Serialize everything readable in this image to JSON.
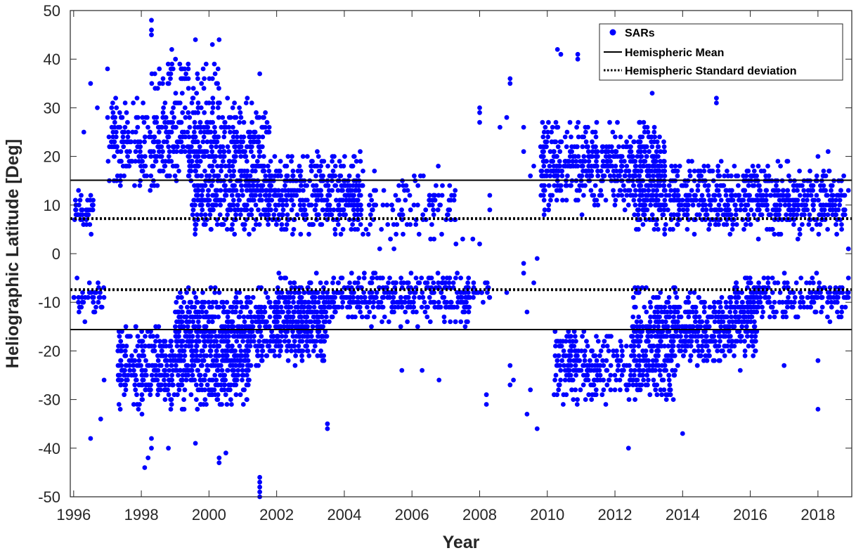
{
  "chart_data": {
    "type": "scatter",
    "title": "",
    "xlabel": "Year",
    "ylabel": "Heliographic Latitude [Deg]",
    "xlim": [
      1995.9,
      2019.0
    ],
    "ylim": [
      -50,
      50
    ],
    "xticks": [
      1996,
      1998,
      2000,
      2002,
      2004,
      2006,
      2008,
      2010,
      2012,
      2014,
      2016,
      2018
    ],
    "yticks": [
      -50,
      -40,
      -30,
      -20,
      -10,
      0,
      10,
      20,
      30,
      40,
      50
    ],
    "grid": false,
    "legend_position": "top-right",
    "legend": [
      {
        "label": "SARs",
        "style": "blue-dot"
      },
      {
        "label": "Hemispheric Mean",
        "style": "solid-line"
      },
      {
        "label": "Hemispheric Standard deviation",
        "style": "dotted-line"
      }
    ],
    "colors": {
      "sars": "#0000ff",
      "lines": "#000000",
      "axes": "#262626"
    },
    "series": [
      {
        "name": "SARs",
        "type": "scatter",
        "clusters": [
          {
            "x_range": [
              1996.0,
              1996.6
            ],
            "y_range": [
              4,
              13
            ],
            "count": 40
          },
          {
            "x_range": [
              1996.0,
              1996.9
            ],
            "y_range": [
              -14,
              -4
            ],
            "count": 40
          },
          {
            "x_range": [
              1997.0,
              2001.8
            ],
            "y_range": [
              12,
              33
            ],
            "count": 520
          },
          {
            "x_range": [
              1998.3,
              2000.3
            ],
            "y_range": [
              30,
              42
            ],
            "count": 60
          },
          {
            "x_range": [
              1999.5,
              2004.6
            ],
            "y_range": [
              3,
              22
            ],
            "count": 620
          },
          {
            "x_range": [
              2003.8,
              2007.3
            ],
            "y_range": [
              0,
              18
            ],
            "count": 130
          },
          {
            "x_range": [
              1997.3,
              2001.2
            ],
            "y_range": [
              -33,
              -14
            ],
            "count": 520
          },
          {
            "x_range": [
              1999.0,
              2003.5
            ],
            "y_range": [
              -24,
              -6
            ],
            "count": 650
          },
          {
            "x_range": [
              2002.0,
              2007.7
            ],
            "y_range": [
              -15,
              -3
            ],
            "count": 420
          },
          {
            "x_range": [
              2007.5,
              2008.3
            ],
            "y_range": [
              -12,
              -5
            ],
            "count": 25
          },
          {
            "x_range": [
              2009.8,
              2013.5
            ],
            "y_range": [
              8,
              28
            ],
            "count": 480
          },
          {
            "x_range": [
              2012.5,
              2018.8
            ],
            "y_range": [
              3,
              20
            ],
            "count": 680
          },
          {
            "x_range": [
              2010.2,
              2013.8
            ],
            "y_range": [
              -32,
              -14
            ],
            "count": 360
          },
          {
            "x_range": [
              2012.5,
              2016.2
            ],
            "y_range": [
              -24,
              -6
            ],
            "count": 480
          },
          {
            "x_range": [
              2015.5,
              2018.9
            ],
            "y_range": [
              -14,
              -4
            ],
            "count": 200
          }
        ],
        "points": [
          [
            1998.3,
            48
          ],
          [
            1998.3,
            46
          ],
          [
            1998.3,
            45
          ],
          [
            1999.6,
            44
          ],
          [
            2000.3,
            44
          ],
          [
            2000.1,
            43
          ],
          [
            1998.9,
            42
          ],
          [
            2010.3,
            42
          ],
          [
            2010.9,
            41
          ],
          [
            2010.4,
            41
          ],
          [
            2010.9,
            40
          ],
          [
            2001.5,
            37
          ],
          [
            1997.0,
            38
          ],
          [
            2008.9,
            36
          ],
          [
            2008.9,
            35
          ],
          [
            2013.1,
            33
          ],
          [
            2015.0,
            32
          ],
          [
            2015.0,
            31
          ],
          [
            2008.0,
            30
          ],
          [
            2008.0,
            29
          ],
          [
            2008.8,
            28
          ],
          [
            2008.0,
            27
          ],
          [
            2008.6,
            26
          ],
          [
            1996.5,
            35
          ],
          [
            1996.7,
            30
          ],
          [
            1996.3,
            25
          ],
          [
            2007.3,
            2
          ],
          [
            2007.5,
            3
          ],
          [
            2007.8,
            3
          ],
          [
            2008.0,
            2
          ],
          [
            2006.9,
            14
          ],
          [
            2008.3,
            12
          ],
          [
            2008.3,
            9
          ],
          [
            2009.3,
            26
          ],
          [
            2009.3,
            21
          ],
          [
            2009.5,
            16
          ],
          [
            2009.6,
            18
          ],
          [
            2018.0,
            20
          ],
          [
            2018.3,
            21
          ],
          [
            2018.9,
            13
          ],
          [
            2018.9,
            1
          ],
          [
            1998.3,
            -40
          ],
          [
            1998.2,
            -42
          ],
          [
            1998.1,
            -44
          ],
          [
            1998.3,
            -38
          ],
          [
            1998.8,
            -40
          ],
          [
            1999.6,
            -39
          ],
          [
            2000.3,
            -42
          ],
          [
            2000.3,
            -43
          ],
          [
            2000.5,
            -41
          ],
          [
            2001.5,
            -46
          ],
          [
            2001.5,
            -47
          ],
          [
            2001.5,
            -48
          ],
          [
            2001.5,
            -49
          ],
          [
            2001.5,
            -50
          ],
          [
            2003.5,
            -35
          ],
          [
            2003.5,
            -36
          ],
          [
            1996.5,
            -38
          ],
          [
            1996.8,
            -34
          ],
          [
            1996.9,
            -26
          ],
          [
            2005.7,
            -24
          ],
          [
            2006.3,
            -24
          ],
          [
            2006.8,
            -26
          ],
          [
            2008.2,
            -29
          ],
          [
            2008.2,
            -31
          ],
          [
            2008.9,
            -23
          ],
          [
            2008.9,
            -27
          ],
          [
            2009.0,
            -26
          ],
          [
            2009.4,
            -33
          ],
          [
            2009.5,
            -28
          ],
          [
            2009.7,
            -36
          ],
          [
            2012.4,
            -40
          ],
          [
            2014.0,
            -37
          ],
          [
            2017.0,
            -23
          ],
          [
            2018.0,
            -32
          ],
          [
            2018.0,
            -22
          ],
          [
            2008.8,
            -8
          ],
          [
            2009.4,
            -12
          ],
          [
            2009.3,
            -2
          ],
          [
            2009.3,
            -4
          ],
          [
            2009.6,
            -6
          ],
          [
            2009.7,
            -1
          ],
          [
            2018.5,
            -10
          ],
          [
            2018.7,
            -12
          ],
          [
            2018.9,
            -8
          ],
          [
            2018.9,
            -5
          ]
        ]
      },
      {
        "name": "Hemispheric Mean",
        "type": "hline",
        "values": [
          15.1,
          -15.6
        ]
      },
      {
        "name": "Hemispheric Standard deviation",
        "type": "hline",
        "values": [
          7.2,
          -7.4
        ]
      }
    ]
  }
}
